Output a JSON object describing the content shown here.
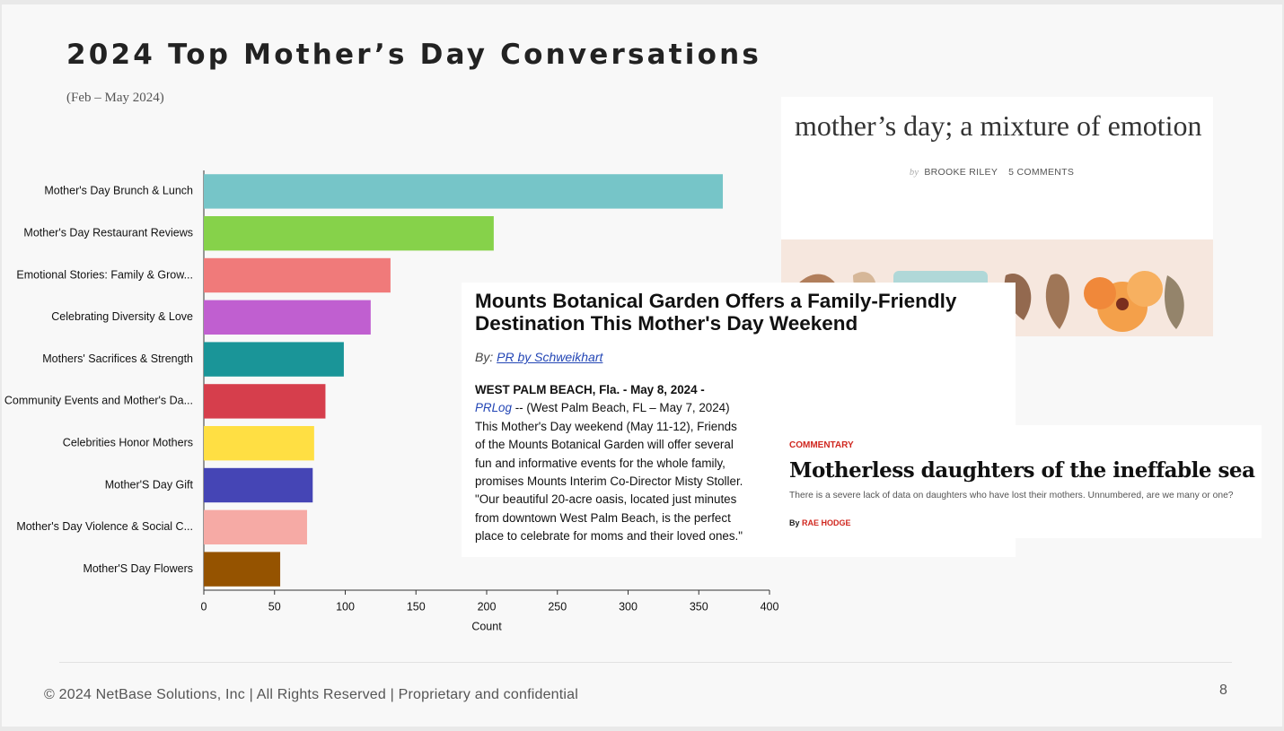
{
  "chart_data": {
    "type": "bar",
    "orientation": "horizontal",
    "title": "2024 Top Mother’s Day Conversations",
    "subtitle": "(Feb – May 2024)",
    "categories": [
      "Mother's Day Brunch & Lunch",
      "Mother's Day Restaurant Reviews",
      "Emotional Stories: Family & Grow...",
      "Celebrating Diversity & Love",
      "Mothers' Sacrifices & Strength",
      "Community Events and Mother's Da...",
      "Celebrities Honor Mothers",
      "Mother'S Day Gift",
      "Mother's Day Violence & Social C...",
      "Mother'S Day Flowers"
    ],
    "values": [
      367,
      205,
      132,
      118,
      99,
      86,
      78,
      77,
      73,
      54
    ],
    "colors": [
      "#76c5c8",
      "#86d24a",
      "#f07a7a",
      "#c05fd0",
      "#1a9598",
      "#d63e4c",
      "#ffdf43",
      "#4545b5",
      "#f6aaa5",
      "#955300"
    ],
    "xlabel": "Count",
    "xlim": [
      0,
      400
    ],
    "xticks": [
      0,
      50,
      100,
      150,
      200,
      250,
      300,
      350,
      400
    ],
    "grid": false
  },
  "articles": [
    {
      "headline": "mother’s day; a mixture of emotion",
      "by": "by",
      "author": "BROOKE RILEY",
      "comments": "5 COMMENTS"
    },
    {
      "headline": [
        "Mounts Botanical Garden Offers a Family-Friendly",
        "Destination This Mother's Day Weekend"
      ],
      "by": "By:",
      "author": "PR by Schweikhart",
      "dateline": "WEST PALM BEACH, Fla. - May 8, 2024 -",
      "source": "PRLog",
      "source_rest": "-- (West Palm Beach, FL – May 7, 2024)",
      "body": [
        "This Mother's Day weekend (May 11-12),  Friends",
        "of the Mounts Botanical Garden will offer several",
        "fun and informative events for the whole family,",
        "promises Mounts Interim Co-Director Misty Stoller.",
        "\"Our beautiful 20-acre oasis, located just minutes",
        "from downtown West Palm Beach, is the perfect",
        "place to celebrate for moms and their loved ones.\""
      ]
    },
    {
      "kicker": "COMMENTARY",
      "headline": "Motherless daughters of the ineffable sea",
      "dek": "There is a severe lack of data on daughters who have lost their mothers. Unnumbered, are we many or one?",
      "by": "By",
      "author": "RAE HODGE"
    }
  ],
  "footer": "© 2024 NetBase Solutions, Inc | All Rights Reserved | Proprietary and confidential",
  "page_number": "8"
}
